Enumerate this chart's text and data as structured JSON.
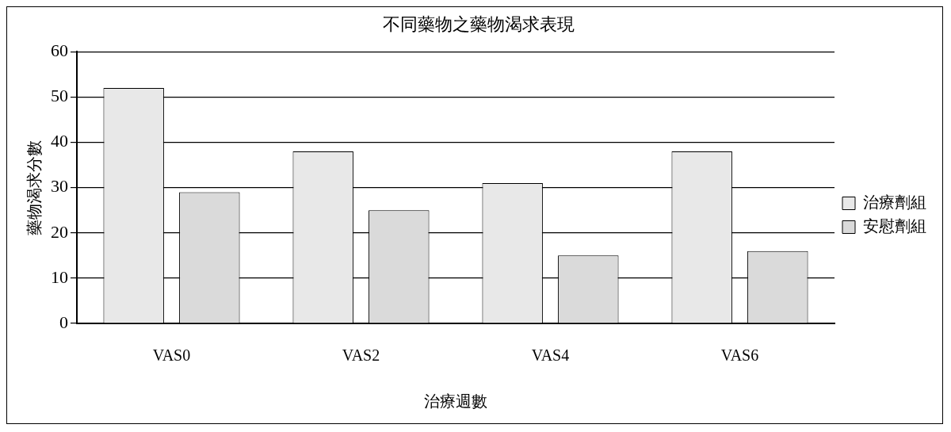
{
  "chart_data": {
    "type": "bar",
    "title": "不同藥物之藥物渴求表現",
    "xlabel": "治療週數",
    "ylabel": "藥物渴求分數",
    "categories": [
      "VAS0",
      "VAS2",
      "VAS4",
      "VAS6"
    ],
    "series": [
      {
        "name": "治療劑組",
        "color": "#e8e8e8",
        "values": [
          52,
          38,
          31,
          38
        ]
      },
      {
        "name": "安慰劑組",
        "color": "#dadada",
        "values": [
          29,
          25,
          15,
          16
        ]
      }
    ],
    "ylim": [
      0,
      60
    ],
    "yticks": [
      0,
      10,
      20,
      30,
      40,
      50,
      60
    ],
    "grid": "y",
    "legend": "right"
  }
}
